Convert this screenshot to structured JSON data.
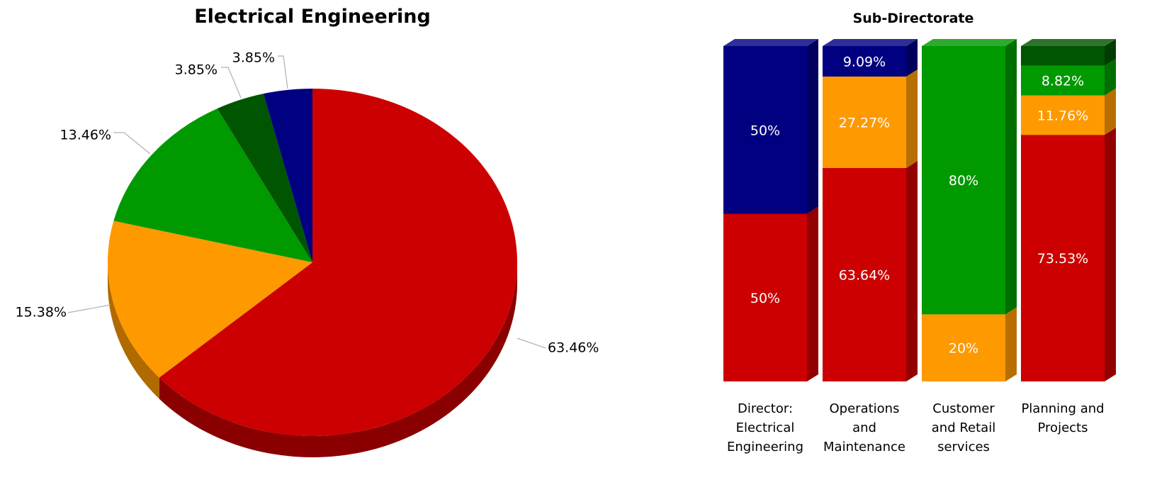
{
  "chart_data": [
    {
      "type": "pie",
      "title": "Electrical Engineering",
      "slices": [
        {
          "label": "63.46%",
          "value": 63.46,
          "color": "#cc0000",
          "side": "#8a0000"
        },
        {
          "label": "15.38%",
          "value": 15.38,
          "color": "#ff9900",
          "side": "#b06a00"
        },
        {
          "label": "13.46%",
          "value": 13.46,
          "color": "#009900",
          "side": "#006600"
        },
        {
          "label": "3.85%",
          "value": 3.85,
          "color": "#005500",
          "side": "#003300"
        },
        {
          "label": "3.85%",
          "value": 3.85,
          "color": "#000080",
          "side": "#000055"
        }
      ]
    },
    {
      "type": "bar",
      "stacked": true,
      "percent": true,
      "title": "Sub-Directorate",
      "categories": [
        "Director: Electrical Engineering",
        "Operations and Maintenance",
        "Customer and Retail services",
        "Planning and Projects"
      ],
      "category_lines": [
        [
          "Director:",
          "Electrical",
          "Engineering"
        ],
        [
          "Operations",
          "and",
          "Maintenance"
        ],
        [
          "Customer",
          "and Retail",
          "services"
        ],
        [
          "Planning and",
          "Projects"
        ]
      ],
      "segments": [
        [
          {
            "value": 50,
            "label": "50%",
            "color": "#cc0000"
          },
          {
            "value": 50,
            "label": "50%",
            "color": "#000080"
          }
        ],
        [
          {
            "value": 63.64,
            "label": "63.64%",
            "color": "#cc0000"
          },
          {
            "value": 27.27,
            "label": "27.27%",
            "color": "#ff9900"
          },
          {
            "value": 9.09,
            "label": "9.09%",
            "color": "#000080"
          }
        ],
        [
          {
            "value": 20,
            "label": "20%",
            "color": "#ff9900"
          },
          {
            "value": 80,
            "label": "80%",
            "color": "#009900"
          }
        ],
        [
          {
            "value": 73.53,
            "label": "73.53%",
            "color": "#cc0000"
          },
          {
            "value": 11.76,
            "label": "11.76%",
            "color": "#ff9900"
          },
          {
            "value": 8.82,
            "label": "8.82%",
            "color": "#009900"
          },
          {
            "value": 5.88,
            "label": "",
            "color": "#005500"
          }
        ]
      ]
    }
  ]
}
